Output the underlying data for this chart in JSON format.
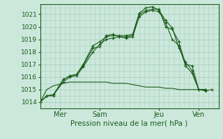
{
  "xlabel": "Pression niveau de la mer( hPa )",
  "ylim": [
    1013.5,
    1021.8
  ],
  "xlim": [
    0,
    108
  ],
  "yticks": [
    1014,
    1015,
    1016,
    1017,
    1018,
    1019,
    1020,
    1021
  ],
  "xtick_positions": [
    12,
    36,
    72,
    96
  ],
  "xtick_labels": [
    "Mer",
    "Sam",
    "Jeu",
    "Ven"
  ],
  "bg_color": "#cce8dc",
  "grid_color": "#aacfbf",
  "line_color": "#1a5c1a",
  "line1_x": [
    0,
    4,
    8,
    14,
    18,
    22,
    26,
    32,
    36,
    40,
    44,
    48,
    52,
    56,
    60,
    64,
    68,
    72,
    76,
    80,
    84,
    88,
    92,
    96,
    100,
    104
  ],
  "line1_y": [
    1014.0,
    1014.5,
    1014.5,
    1015.8,
    1016.1,
    1016.2,
    1016.9,
    1018.3,
    1018.4,
    1019.3,
    1019.4,
    1019.2,
    1019.2,
    1019.3,
    1021.0,
    1021.3,
    1021.4,
    1021.4,
    1020.0,
    1019.8,
    1018.8,
    1017.0,
    1016.9,
    1015.0,
    1014.9,
    1015.0
  ],
  "line2_x": [
    0,
    4,
    8,
    14,
    18,
    22,
    26,
    32,
    36,
    40,
    44,
    48,
    52,
    56,
    60,
    64,
    68,
    72,
    76,
    80,
    84,
    88,
    92,
    96,
    100
  ],
  "line2_y": [
    1014.0,
    1014.5,
    1014.6,
    1015.8,
    1016.1,
    1016.2,
    1017.0,
    1018.5,
    1018.8,
    1019.2,
    1019.3,
    1019.3,
    1019.3,
    1019.4,
    1021.1,
    1021.5,
    1021.6,
    1021.3,
    1020.5,
    1019.9,
    1018.3,
    1017.2,
    1016.5,
    1015.0,
    1015.0
  ],
  "line3_x": [
    0,
    4,
    8,
    14,
    18,
    22,
    26,
    32,
    36,
    40,
    44,
    48,
    52,
    56,
    60,
    64,
    68,
    72,
    76,
    80,
    84,
    88,
    92,
    96,
    100
  ],
  "line3_y": [
    1014.0,
    1014.5,
    1014.6,
    1015.6,
    1016.0,
    1016.1,
    1016.8,
    1018.0,
    1018.6,
    1019.0,
    1019.1,
    1019.2,
    1019.1,
    1019.2,
    1020.8,
    1021.2,
    1021.3,
    1021.2,
    1020.3,
    1019.0,
    1018.5,
    1016.9,
    1016.3,
    1015.0,
    1015.0
  ],
  "line4_x": [
    0,
    4,
    8,
    14,
    18,
    22,
    26,
    32,
    36,
    40,
    44,
    48,
    52,
    56,
    60,
    64,
    68,
    72,
    76,
    80,
    84,
    88,
    92,
    96,
    100
  ],
  "line4_y": [
    1014.0,
    1015.0,
    1015.3,
    1015.5,
    1015.6,
    1015.6,
    1015.6,
    1015.6,
    1015.6,
    1015.6,
    1015.5,
    1015.5,
    1015.5,
    1015.4,
    1015.3,
    1015.2,
    1015.2,
    1015.2,
    1015.1,
    1015.1,
    1015.0,
    1015.0,
    1015.0,
    1015.0,
    1015.0
  ]
}
